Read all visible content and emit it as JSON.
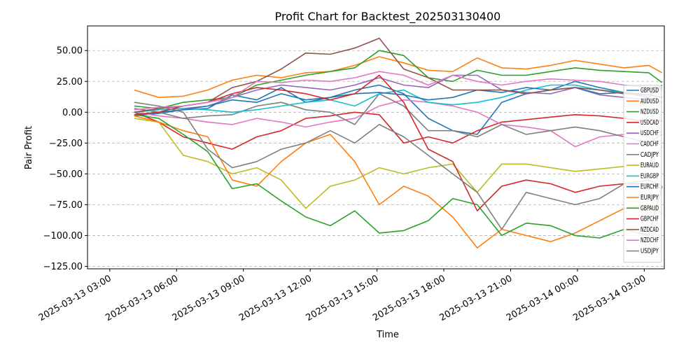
{
  "chart_data": {
    "type": "line",
    "title": "Profit Chart for Backtest_202503130400",
    "xlabel": "Time",
    "ylabel": "Pair Profit",
    "grid": "horizontal dashed",
    "legend_position": "right",
    "x_range_hours": [
      2.0,
      27.9
    ],
    "ylim": [
      -127,
      70
    ],
    "y_ticks": [
      50,
      25,
      0,
      -25,
      -50,
      -75,
      -100,
      -125
    ],
    "y_tick_labels": [
      "50.00",
      "25.00",
      "0.00",
      "−25.00",
      "−50.00",
      "−75.00",
      "−100.00",
      "−125.00"
    ],
    "x_ticks": [
      {
        "hour": 3,
        "label": "2025-03-13 03:00"
      },
      {
        "hour": 6,
        "label": "2025-03-13 06:00"
      },
      {
        "hour": 9,
        "label": "2025-03-13 09:00"
      },
      {
        "hour": 12,
        "label": "2025-03-13 12:00"
      },
      {
        "hour": 15,
        "label": "2025-03-13 15:00"
      },
      {
        "hour": 18,
        "label": "2025-03-13 18:00"
      },
      {
        "hour": 21,
        "label": "2025-03-13 21:00"
      },
      {
        "hour": 24,
        "label": "2025-03-14 00:00"
      },
      {
        "hour": 27,
        "label": "2025-03-14 03:00"
      }
    ],
    "x_hours": [
      4.1,
      5.2,
      6.3,
      7.4,
      8.5,
      9.6,
      10.7,
      11.8,
      12.9,
      14.0,
      15.1,
      16.2,
      17.3,
      18.4,
      19.5,
      20.6,
      21.7,
      22.8,
      23.9,
      25.0,
      26.1,
      27.2,
      27.8
    ],
    "series": [
      {
        "name": "GBPUSD",
        "color": "#1f77b4",
        "values": [
          -3,
          -1,
          2,
          3,
          14,
          10,
          20,
          8,
          12,
          18,
          22,
          15,
          -5,
          -15,
          -18,
          8,
          15,
          18,
          25,
          20,
          16,
          12,
          22
        ]
      },
      {
        "name": "AUDUSD",
        "color": "#ff7f0e",
        "values": [
          18,
          12,
          13,
          18,
          26,
          30,
          28,
          32,
          33,
          38,
          45,
          40,
          34,
          33,
          44,
          36,
          35,
          38,
          42,
          39,
          36,
          38,
          32
        ]
      },
      {
        "name": "NZDUSD",
        "color": "#2ca02c",
        "values": [
          5,
          3,
          8,
          10,
          12,
          22,
          26,
          30,
          33,
          36,
          50,
          46,
          28,
          25,
          34,
          30,
          30,
          33,
          36,
          34,
          33,
          32,
          24
        ]
      },
      {
        "name": "USDCAD",
        "color": "#d62728",
        "values": [
          0,
          -8,
          -20,
          -25,
          -30,
          -20,
          -15,
          -5,
          -3,
          0,
          -2,
          -25,
          -20,
          -25,
          -15,
          -8,
          -6,
          -4,
          -2,
          -3,
          -5,
          -8,
          -7
        ]
      },
      {
        "name": "USDCHF",
        "color": "#9467bd",
        "values": [
          0,
          2,
          3,
          5,
          12,
          18,
          22,
          20,
          18,
          22,
          28,
          22,
          20,
          30,
          30,
          18,
          16,
          15,
          20,
          14,
          12,
          10,
          8
        ]
      },
      {
        "name": "CADCHF",
        "color": "#e377c2",
        "values": [
          0,
          -3,
          -5,
          -8,
          -10,
          -5,
          -8,
          -12,
          -8,
          -5,
          5,
          10,
          8,
          5,
          0,
          -10,
          -12,
          -15,
          -28,
          -20,
          -18,
          -17,
          -16
        ]
      },
      {
        "name": "CADJPY",
        "color": "#7f7f7f",
        "values": [
          3,
          0,
          -5,
          -3,
          -2,
          5,
          8,
          2,
          0,
          -10,
          15,
          5,
          -15,
          -15,
          -20,
          -10,
          -18,
          -15,
          -12,
          -15,
          -20,
          -25,
          -18
        ]
      },
      {
        "name": "EURAUD",
        "color": "#bcbd22",
        "values": [
          -5,
          -8,
          -35,
          -40,
          -50,
          -45,
          -55,
          -78,
          -60,
          -55,
          -45,
          -50,
          -45,
          -42,
          -65,
          -42,
          -42,
          -45,
          -48,
          -46,
          -44,
          -42,
          -28
        ]
      },
      {
        "name": "EURGBP",
        "color": "#17becf",
        "values": [
          0,
          2,
          3,
          2,
          0,
          2,
          5,
          8,
          10,
          5,
          15,
          18,
          8,
          6,
          8,
          12,
          18,
          22,
          22,
          18,
          16,
          14,
          12
        ]
      },
      {
        "name": "EURCHF",
        "color": "#1f77b4",
        "values": [
          -2,
          0,
          2,
          5,
          10,
          8,
          15,
          10,
          12,
          15,
          16,
          14,
          10,
          12,
          18,
          16,
          20,
          18,
          20,
          15,
          16,
          14,
          20
        ]
      },
      {
        "name": "EURJPY",
        "color": "#ff7f0e",
        "values": [
          -3,
          -8,
          -15,
          -20,
          -55,
          -60,
          -40,
          -25,
          -18,
          -40,
          -75,
          -60,
          -68,
          -85,
          -110,
          -95,
          -100,
          -105,
          -98,
          -88,
          -78,
          -75,
          -82
        ]
      },
      {
        "name": "GBPAUD",
        "color": "#2ca02c",
        "values": [
          -2,
          -5,
          -18,
          -32,
          -62,
          -58,
          -72,
          -85,
          -92,
          -80,
          -98,
          -96,
          -88,
          -70,
          -75,
          -100,
          -90,
          -92,
          -100,
          -102,
          -95,
          -100,
          -60
        ]
      },
      {
        "name": "GBPCHF",
        "color": "#d62728",
        "values": [
          -2,
          0,
          5,
          8,
          15,
          20,
          18,
          15,
          10,
          15,
          30,
          8,
          -30,
          -40,
          -80,
          -60,
          -55,
          -58,
          -65,
          -60,
          -58,
          -58,
          -62
        ]
      },
      {
        "name": "NZDCAD",
        "color": "#8c564b",
        "values": [
          0,
          3,
          5,
          8,
          20,
          25,
          35,
          48,
          47,
          52,
          60,
          35,
          28,
          18,
          18,
          18,
          15,
          18,
          20,
          18,
          15,
          14,
          12
        ]
      },
      {
        "name": "NZDCHF",
        "color": "#e377c2",
        "values": [
          2,
          4,
          5,
          8,
          12,
          25,
          24,
          26,
          25,
          28,
          33,
          30,
          22,
          30,
          25,
          22,
          25,
          27,
          26,
          25,
          22,
          20,
          18
        ]
      },
      {
        "name": "USDJPY",
        "color": "#7f7f7f",
        "values": [
          8,
          5,
          0,
          -30,
          -45,
          -40,
          -30,
          -25,
          -15,
          -25,
          -10,
          -20,
          -35,
          -50,
          -65,
          -95,
          -65,
          -70,
          -75,
          -70,
          -58,
          -55,
          -60
        ]
      }
    ]
  }
}
